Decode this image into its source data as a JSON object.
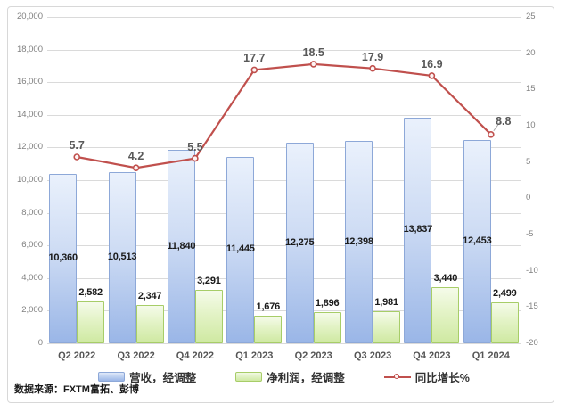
{
  "source_note": "数据来源：FXTM富拓、彭博",
  "chart_data": {
    "type": "combo",
    "categories": [
      "Q2 2022",
      "Q3 2022",
      "Q4 2022",
      "Q1 2023",
      "Q2 2023",
      "Q3 2023",
      "Q4 2023",
      "Q1 2024"
    ],
    "series": [
      {
        "name": "营收，经调整",
        "type": "bar",
        "axis": "left",
        "values": [
          10360,
          10513,
          11840,
          11445,
          12275,
          12398,
          13837,
          12453
        ],
        "labels": [
          "10,360",
          "10,513",
          "11,840",
          "11,445",
          "12,275",
          "12,398",
          "13,837",
          "12,453"
        ]
      },
      {
        "name": "净利润，经调整",
        "type": "bar",
        "axis": "left",
        "values": [
          2582,
          2347,
          3291,
          1676,
          1896,
          1981,
          3440,
          2499
        ],
        "labels": [
          "2,582",
          "2,347",
          "3,291",
          "1,676",
          "1,896",
          "1,981",
          "3,440",
          "2,499"
        ]
      },
      {
        "name": "同比增长%",
        "type": "line",
        "axis": "right",
        "values": [
          5.7,
          4.2,
          5.5,
          17.7,
          18.5,
          17.9,
          16.9,
          8.8
        ],
        "labels": [
          "5.7",
          "4.2",
          "5.5",
          "17.7",
          "18.5",
          "17.9",
          "16.9",
          "8.8"
        ]
      }
    ],
    "left_axis": {
      "min": 0,
      "max": 20000,
      "step": 2000,
      "tick_labels": [
        "0",
        "2,000",
        "4,000",
        "6,000",
        "8,000",
        "10,000",
        "12,000",
        "14,000",
        "16,000",
        "18,000",
        "20,000"
      ]
    },
    "right_axis": {
      "min": -20,
      "max": 25,
      "step": 5,
      "tick_labels": [
        "-20",
        "-15",
        "-10",
        "-5",
        "0",
        "5",
        "10",
        "15",
        "20",
        "25"
      ]
    },
    "grid": true,
    "legend_position": "bottom"
  },
  "colors": {
    "bar_revenue_border": "#8da8d8",
    "bar_profit_border": "#a7cd68",
    "line": "#c0504d",
    "marker_fill": "#fdf5f5",
    "grid": "#dadada",
    "axis_text": "#808080",
    "data_label": "#1a1a1a",
    "line_label": "#595959",
    "leader": "#a6a6a6"
  }
}
